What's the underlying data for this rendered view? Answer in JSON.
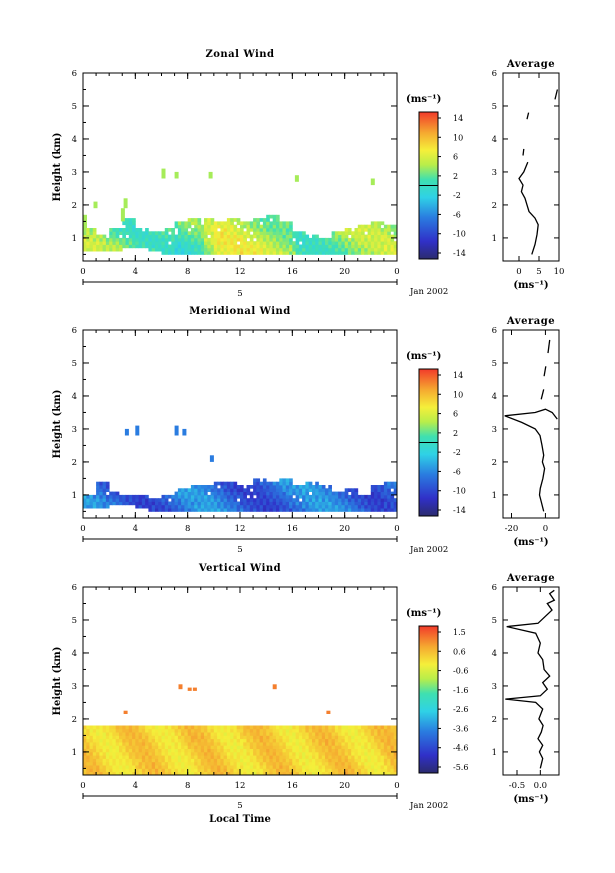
{
  "figure": {
    "date_label": "Jan 2002",
    "xlabel": "Local Time",
    "day_label": "5",
    "unit_label": "(ms⁻¹)",
    "profile_title": "Average"
  },
  "chart_data": [
    {
      "type": "heatmap",
      "title": "Zonal Wind",
      "ylabel": "Height (km)",
      "xlabel": "",
      "x_ticks": [
        "0",
        "4",
        "8",
        "12",
        "16",
        "20",
        "0"
      ],
      "x_range_hours": [
        0,
        24
      ],
      "ylim": [
        0.3,
        6.0
      ],
      "y_ticks": [
        "1",
        "2",
        "3",
        "4",
        "5",
        "6"
      ],
      "colorbar": {
        "label": "(ms⁻¹)",
        "ticks": [
          "14",
          "10",
          "6",
          "2",
          "-2",
          "-6",
          "-10",
          "-14"
        ],
        "range": [
          -16,
          16
        ],
        "contour": 0
      },
      "cover": [
        [
          0,
          0.6,
          1.3
        ],
        [
          1,
          0.6,
          1.1
        ],
        [
          2,
          0.6,
          1.3
        ],
        [
          3,
          0.7,
          1.6
        ],
        [
          4,
          0.7,
          1.3
        ],
        [
          5,
          0.6,
          1.2
        ],
        [
          6,
          0.5,
          1.3
        ],
        [
          7,
          0.5,
          1.5
        ],
        [
          8,
          0.5,
          1.6
        ],
        [
          9,
          0.5,
          1.6
        ],
        [
          10,
          0.5,
          1.5
        ],
        [
          11,
          0.5,
          1.6
        ],
        [
          12,
          0.5,
          1.5
        ],
        [
          13,
          0.5,
          1.6
        ],
        [
          14,
          0.5,
          1.7
        ],
        [
          15,
          0.5,
          1.5
        ],
        [
          16,
          0.5,
          1.2
        ],
        [
          17,
          0.5,
          1.1
        ],
        [
          18,
          0.5,
          1.0
        ],
        [
          19,
          0.5,
          1.2
        ],
        [
          20,
          0.5,
          1.3
        ],
        [
          21,
          0.5,
          1.4
        ],
        [
          22,
          0.5,
          1.5
        ],
        [
          23,
          0.5,
          1.4
        ]
      ],
      "cells": [
        [
          0,
          1.3,
          1.7
        ],
        [
          0.8,
          1.9,
          2.1
        ],
        [
          2.9,
          1.5,
          1.9
        ],
        [
          3.1,
          1.9,
          2.2
        ],
        [
          6.0,
          2.8,
          3.1
        ],
        [
          7.0,
          2.8,
          3.0
        ],
        [
          9.6,
          2.8,
          3.0
        ],
        [
          16.2,
          2.7,
          2.9
        ],
        [
          22.0,
          2.6,
          2.8
        ]
      ],
      "color_field": {
        "base": 3,
        "amp": 3,
        "freq": 0.55,
        "lo_band": [
          7,
          9,
          -2
        ],
        "hi_band": [
          10,
          16,
          2
        ]
      },
      "profile": {
        "xlabel": "(ms⁻¹)",
        "x_ticks": [
          "0",
          "5",
          "10"
        ],
        "xlim": [
          -4,
          10
        ],
        "segments": [
          [
            [
              3.2,
              0.5
            ],
            [
              4.0,
              0.8
            ],
            [
              4.5,
              1.1
            ],
            [
              4.8,
              1.4
            ],
            [
              4.0,
              1.6
            ],
            [
              2.5,
              1.8
            ],
            [
              2.0,
              2.0
            ],
            [
              1.5,
              2.2
            ],
            [
              0.6,
              2.4
            ],
            [
              1.0,
              2.6
            ],
            [
              0.0,
              2.8
            ],
            [
              1.2,
              3.0
            ],
            [
              2.2,
              3.3
            ]
          ],
          [
            [
              1.0,
              3.5
            ],
            [
              1.2,
              3.7
            ]
          ],
          [
            [
              2.0,
              4.6
            ],
            [
              2.4,
              4.8
            ]
          ],
          [
            [
              9.0,
              5.2
            ],
            [
              9.6,
              5.5
            ]
          ]
        ]
      }
    },
    {
      "type": "heatmap",
      "title": "Meridional Wind",
      "ylabel": "Height (km)",
      "xlabel": "",
      "x_ticks": [
        "0",
        "4",
        "8",
        "12",
        "16",
        "20",
        "0"
      ],
      "x_range_hours": [
        0,
        24
      ],
      "ylim": [
        0.3,
        6.0
      ],
      "y_ticks": [
        "1",
        "2",
        "3",
        "4",
        "5",
        "6"
      ],
      "colorbar": {
        "label": "(ms⁻¹)",
        "ticks": [
          "14",
          "10",
          "6",
          "2",
          "-2",
          "-6",
          "-10",
          "-14"
        ],
        "range": [
          -16,
          16
        ],
        "contour": 0
      },
      "cover": [
        [
          0,
          0.6,
          1.0
        ],
        [
          1,
          0.6,
          1.4
        ],
        [
          2,
          0.7,
          1.1
        ],
        [
          3,
          0.7,
          1.0
        ],
        [
          4,
          0.6,
          1.0
        ],
        [
          5,
          0.5,
          0.9
        ],
        [
          6,
          0.5,
          1.0
        ],
        [
          7,
          0.5,
          1.2
        ],
        [
          8,
          0.5,
          1.3
        ],
        [
          9,
          0.5,
          1.3
        ],
        [
          10,
          0.5,
          1.4
        ],
        [
          11,
          0.5,
          1.4
        ],
        [
          12,
          0.5,
          1.3
        ],
        [
          13,
          0.5,
          1.5
        ],
        [
          14,
          0.5,
          1.4
        ],
        [
          15,
          0.5,
          1.5
        ],
        [
          16,
          0.5,
          1.3
        ],
        [
          17,
          0.5,
          1.4
        ],
        [
          18,
          0.5,
          1.3
        ],
        [
          19,
          0.5,
          1.1
        ],
        [
          20,
          0.5,
          1.2
        ],
        [
          21,
          0.5,
          1.0
        ],
        [
          22,
          0.5,
          1.3
        ],
        [
          23,
          0.5,
          1.4
        ]
      ],
      "cells": [
        [
          3.2,
          2.8,
          3.0
        ],
        [
          4.0,
          2.8,
          3.1
        ],
        [
          7.0,
          2.8,
          3.1
        ],
        [
          7.6,
          2.8,
          3.0
        ],
        [
          9.7,
          2.0,
          2.2
        ]
      ],
      "color_field": {
        "base": -8,
        "amp": 3,
        "freq": 0.7,
        "lo_band": [
          0,
          0,
          0
        ],
        "hi_band": [
          0,
          0,
          0
        ]
      },
      "profile": {
        "xlabel": "(ms⁻¹)",
        "x_ticks": [
          "-20",
          "0"
        ],
        "xlim": [
          -25,
          8
        ],
        "segments": [
          [
            [
              -1.0,
              0.5
            ],
            [
              -2.5,
              0.8
            ],
            [
              -3.5,
              1.0
            ],
            [
              -3.0,
              1.2
            ],
            [
              -1.5,
              1.5
            ],
            [
              -0.5,
              1.8
            ],
            [
              -1.8,
              2.0
            ],
            [
              -1.0,
              2.2
            ],
            [
              -2.0,
              2.5
            ],
            [
              -3.2,
              2.8
            ],
            [
              -6.0,
              3.0
            ],
            [
              -14.0,
              3.2
            ],
            [
              -24.0,
              3.4
            ],
            [
              -6.0,
              3.5
            ],
            [
              0.0,
              3.6
            ],
            [
              4.0,
              3.5
            ],
            [
              7.0,
              3.3
            ]
          ],
          [
            [
              -2.5,
              3.9
            ],
            [
              -1.0,
              4.2
            ]
          ],
          [
            [
              -0.8,
              4.6
            ],
            [
              0.2,
              4.9
            ]
          ],
          [
            [
              1.5,
              5.3
            ],
            [
              2.5,
              5.7
            ]
          ]
        ]
      }
    },
    {
      "type": "heatmap",
      "title": "Vertical Wind",
      "ylabel": "Height (km)",
      "xlabel": "Local Time",
      "x_ticks": [
        "0",
        "4",
        "8",
        "12",
        "16",
        "20",
        "0"
      ],
      "x_range_hours": [
        0,
        24
      ],
      "ylim": [
        0.3,
        6.0
      ],
      "y_ticks": [
        "1",
        "2",
        "3",
        "4",
        "5",
        "6"
      ],
      "colorbar": {
        "label": "(ms⁻¹)",
        "ticks": [
          "1.5",
          "0.6",
          "-0.6",
          "-1.6",
          "-2.6",
          "-3.6",
          "-4.6",
          "-5.6"
        ],
        "range": [
          -6.0,
          2.0
        ],
        "contour": null
      },
      "cover": [
        [
          0,
          0.3,
          1.8
        ],
        [
          1,
          0.3,
          1.8
        ],
        [
          2,
          0.3,
          1.8
        ],
        [
          3,
          0.3,
          1.8
        ],
        [
          4,
          0.3,
          1.8
        ],
        [
          5,
          0.3,
          1.8
        ],
        [
          6,
          0.3,
          1.8
        ],
        [
          7,
          0.3,
          1.8
        ],
        [
          8,
          0.3,
          1.8
        ],
        [
          9,
          0.3,
          1.8
        ],
        [
          10,
          0.3,
          1.8
        ],
        [
          11,
          0.3,
          1.8
        ],
        [
          12,
          0.3,
          1.8
        ],
        [
          13,
          0.3,
          1.8
        ],
        [
          14,
          0.3,
          1.8
        ],
        [
          15,
          0.3,
          1.8
        ],
        [
          16,
          0.3,
          1.8
        ],
        [
          17,
          0.3,
          1.8
        ],
        [
          18,
          0.3,
          1.8
        ],
        [
          19,
          0.3,
          1.8
        ],
        [
          20,
          0.3,
          1.8
        ],
        [
          21,
          0.3,
          1.8
        ],
        [
          22,
          0.3,
          1.8
        ],
        [
          23,
          0.3,
          1.8
        ]
      ],
      "cells": [
        [
          3.1,
          2.15,
          2.25
        ],
        [
          7.3,
          2.9,
          3.05
        ],
        [
          8.0,
          2.85,
          2.95
        ],
        [
          8.4,
          2.85,
          2.95
        ],
        [
          14.5,
          2.9,
          3.05
        ],
        [
          18.6,
          2.15,
          2.25
        ]
      ],
      "color_field": {
        "base": 0.3,
        "amp": 0.4,
        "freq": 1.3,
        "lo_band": [
          0,
          0,
          0
        ],
        "hi_band": [
          0,
          0,
          0
        ]
      },
      "profile": {
        "xlabel": "(ms⁻¹)",
        "x_ticks": [
          "-0.5",
          "0.0"
        ],
        "xlim": [
          -0.8,
          0.4
        ],
        "segments": [
          [
            [
              0.0,
              0.5
            ],
            [
              0.05,
              0.8
            ],
            [
              -0.02,
              1.0
            ],
            [
              0.05,
              1.2
            ],
            [
              -0.05,
              1.4
            ],
            [
              0.02,
              1.6
            ],
            [
              0.06,
              1.8
            ],
            [
              -0.03,
              2.0
            ],
            [
              0.05,
              2.3
            ],
            [
              -0.1,
              2.5
            ],
            [
              -0.75,
              2.6
            ],
            [
              0.0,
              2.7
            ],
            [
              0.15,
              2.9
            ],
            [
              0.05,
              3.1
            ],
            [
              0.2,
              3.3
            ],
            [
              0.08,
              3.5
            ],
            [
              0.05,
              3.8
            ],
            [
              -0.05,
              4.0
            ],
            [
              0.0,
              4.3
            ],
            [
              -0.1,
              4.6
            ],
            [
              -0.72,
              4.8
            ],
            [
              -0.05,
              4.9
            ],
            [
              0.1,
              5.1
            ],
            [
              0.25,
              5.3
            ],
            [
              0.15,
              5.5
            ],
            [
              0.3,
              5.6
            ],
            [
              0.2,
              5.8
            ],
            [
              0.3,
              5.9
            ]
          ]
        ]
      }
    }
  ]
}
